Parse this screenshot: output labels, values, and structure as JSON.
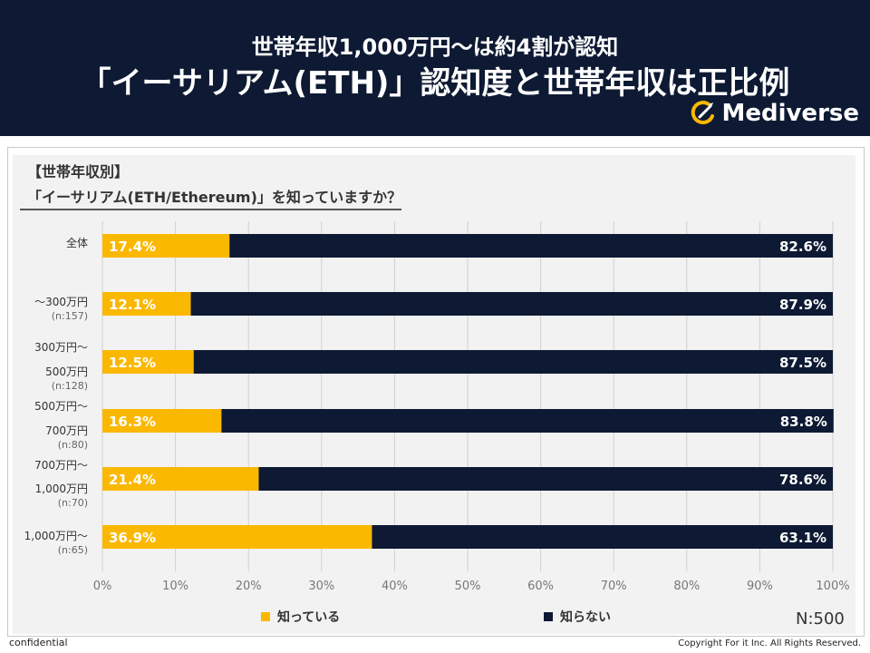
{
  "header": {
    "subtitle": "世帯年収1,000万円〜は約4割が認知",
    "title": "「イーサリアム(ETH)」認知度と世帯年収は正比例",
    "logo_text": "Mediverse"
  },
  "question": {
    "label": "【世帯年収別】",
    "text": "「イーサリアム(ETH/Ethereum)」を知っていますか？"
  },
  "chart_data": {
    "type": "bar",
    "orientation": "horizontal",
    "stacked": true,
    "categories": [
      {
        "lines": [
          "全体"
        ],
        "n": ""
      },
      {
        "lines": [
          "〜300万円"
        ],
        "n": "(n:157)"
      },
      {
        "lines": [
          "300万円〜",
          "500万円"
        ],
        "n": "(n:128)"
      },
      {
        "lines": [
          "500万円〜",
          "700万円"
        ],
        "n": "(n:80)"
      },
      {
        "lines": [
          "700万円〜",
          "1,000万円"
        ],
        "n": "(n:70)"
      },
      {
        "lines": [
          "1,000万円〜"
        ],
        "n": "(n:65)"
      }
    ],
    "series": [
      {
        "name": "知っている",
        "color": "#fbb800",
        "values": [
          17.4,
          12.1,
          12.5,
          16.3,
          21.4,
          36.9
        ]
      },
      {
        "name": "知らない",
        "color": "#0e1a33",
        "values": [
          82.6,
          87.9,
          87.5,
          83.8,
          78.6,
          63.1
        ]
      }
    ],
    "xlim": [
      0,
      100
    ],
    "xticks": [
      "0%",
      "10%",
      "20%",
      "30%",
      "40%",
      "50%",
      "60%",
      "70%",
      "80%",
      "90%",
      "100%"
    ],
    "grid": true,
    "legend": "bottom"
  },
  "sample": "N:500",
  "footer": {
    "left": "confidential",
    "right": "Copyright For it Inc. All Rights Reserved."
  }
}
